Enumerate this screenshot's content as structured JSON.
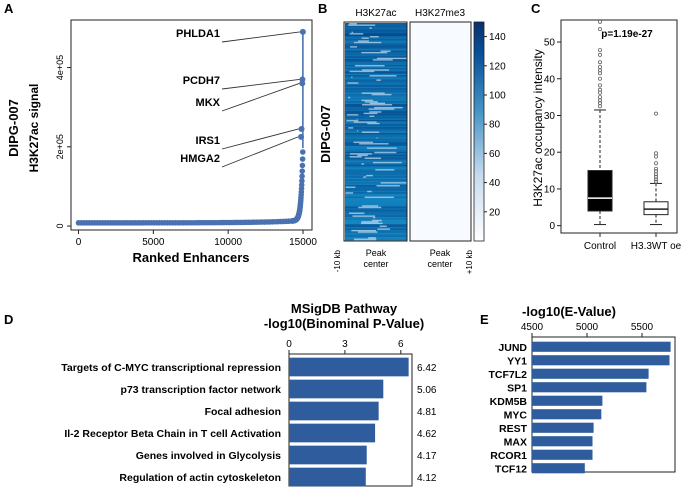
{
  "panel_labels": {
    "a": "A",
    "b": "B",
    "c": "C",
    "d": "D",
    "e": "E"
  },
  "chart_data": [
    {
      "panel": "A",
      "type": "scatter",
      "side_title": "DIPG-007",
      "ylabel": "H3K27ac signal",
      "xlabel": "Ranked Enhancers",
      "xlim": [
        -500,
        15600
      ],
      "ylim": [
        -10000,
        520000
      ],
      "xticks": [
        0,
        5000,
        10000,
        15000
      ],
      "yticks": [
        0,
        200000,
        400000
      ],
      "ytick_labels": [
        "0",
        "2e+05",
        "4e+05"
      ],
      "n_points": 15000,
      "curve_shape": "hockey-stick (low flat enhancer signal rising sharply at the highest ranks)",
      "highlighted": [
        {
          "gene": "PHLDA1",
          "rank": 14990,
          "signal": 490000
        },
        {
          "gene": "PCDH7",
          "rank": 14960,
          "signal": 370000
        },
        {
          "gene": "MKX",
          "rank": 14950,
          "signal": 360000
        },
        {
          "gene": "IRS1",
          "rank": 14900,
          "signal": 245000
        },
        {
          "gene": "HMGA2",
          "rank": 14870,
          "signal": 225000
        }
      ],
      "color": "#4a72b0"
    },
    {
      "panel": "B",
      "type": "heatmap",
      "side_title": "DIPG-007",
      "columns": [
        "H3K27ac",
        "H3K27me3"
      ],
      "x_left_label": "-10 kb",
      "x_right_label": "+10 kb",
      "center_label": "Peak center",
      "colorbar_ticks": [
        20,
        40,
        60,
        80,
        100,
        120,
        140
      ],
      "colorbar_range": [
        0,
        150
      ],
      "colors": {
        "low": "#ffffff",
        "high": "#08306b"
      }
    },
    {
      "panel": "C",
      "type": "box",
      "ylabel": "H3K27ac occupancy intensity",
      "categories": [
        "Control",
        "H3.3WT oe"
      ],
      "ylim": [
        -2,
        56
      ],
      "yticks": [
        0,
        10,
        20,
        30,
        40,
        50
      ],
      "pvalue_text": "p=1.19e-27",
      "boxes": [
        {
          "name": "Control",
          "min": 0.3,
          "q1": 4,
          "median": 7.5,
          "q3": 15,
          "max": 31.5,
          "fill": "#000000",
          "outliers": [
            32.5,
            33.4,
            34.1,
            35,
            36.2,
            37,
            38.2,
            40,
            41.5,
            42.3,
            43.2,
            44.5,
            46.5,
            47.8,
            53.5,
            55.5
          ]
        },
        {
          "name": "H3.3WT oe",
          "min": 0.3,
          "q1": 3,
          "median": 4.5,
          "q3": 6.5,
          "max": 11.5,
          "fill": "#ffffff",
          "outliers": [
            12,
            12.6,
            13.3,
            14,
            14.8,
            15.5,
            17,
            18.8,
            19.7,
            30.5
          ]
        }
      ]
    },
    {
      "panel": "D",
      "type": "bar",
      "orientation": "horizontal",
      "title": "MSigDB Pathway",
      "subtitle": "-log10(Binominal P-Value)",
      "xlim": [
        0,
        6.6
      ],
      "xticks": [
        0,
        3,
        6
      ],
      "categories": [
        "Targets of C-MYC transcriptional repression",
        "p73 transcription factor network",
        "Focal adhesion",
        "Il-2 Receptor Beta Chain in T cell Activation",
        "Genes involved in Glycolysis",
        "Regulation of actin cytoskeleton"
      ],
      "values": [
        6.42,
        5.06,
        4.81,
        4.62,
        4.17,
        4.12
      ],
      "value_labels": [
        "6.42",
        "5.06",
        "4.81",
        "4.62",
        "4.17",
        "4.12"
      ],
      "color": "#2e5c9c"
    },
    {
      "panel": "E",
      "type": "bar",
      "orientation": "horizontal",
      "title": "-log10(E-Value)",
      "xlim": [
        4500,
        5800
      ],
      "xticks": [
        4500,
        5000,
        5500
      ],
      "categories": [
        "JUND",
        "YY1",
        "TCF7L2",
        "SP1",
        "KDM5B",
        "MYC",
        "REST",
        "MAX",
        "RCOR1",
        "TCF12"
      ],
      "values": [
        5760,
        5750,
        5560,
        5540,
        5140,
        5130,
        5060,
        5050,
        5050,
        4980
      ],
      "color": "#2e5c9c"
    }
  ]
}
